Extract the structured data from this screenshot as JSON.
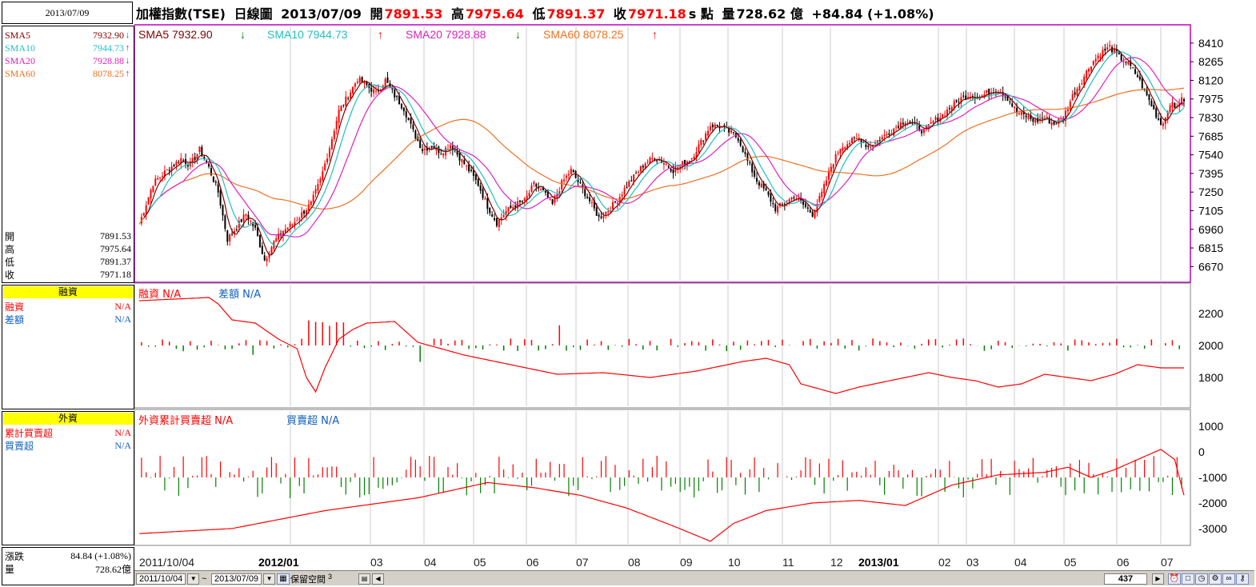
{
  "header": {
    "date_box": "2013/07/09",
    "title": "加權指數(TSE)",
    "chart_kind": "日線圖",
    "date": "2013/07/09",
    "open_label": "開",
    "open": "7891.53",
    "high_label": "高",
    "high": "7975.64",
    "low_label": "低",
    "low": "7891.37",
    "close_label": "收",
    "close": "7971.18",
    "close_suffix": "s 點",
    "volume_label": "量",
    "volume": "728.62 億",
    "change": "+84.84 (+1.08%)"
  },
  "left_panel": {
    "sma": [
      {
        "label": "SMA5",
        "value": "7932.90",
        "dir": "down",
        "color": "#800000"
      },
      {
        "label": "SMA10",
        "value": "7944.73",
        "dir": "up",
        "color": "#20c0c0"
      },
      {
        "label": "SMA20",
        "value": "7928.88",
        "dir": "down",
        "color": "#e020c0"
      },
      {
        "label": "SMA60",
        "value": "8078.25",
        "dir": "up",
        "color": "#f07020"
      }
    ],
    "ohlc": [
      {
        "label": "開",
        "value": "7891.53"
      },
      {
        "label": "高",
        "value": "7975.64"
      },
      {
        "label": "低",
        "value": "7891.37"
      },
      {
        "label": "收",
        "value": "7971.18"
      }
    ],
    "margin_title": "融資",
    "margin_rows": [
      {
        "label": "融資",
        "value": "N/A",
        "color": "#ff0000"
      },
      {
        "label": "差額",
        "value": "N/A",
        "color": "#1060c0"
      }
    ],
    "foreign_title": "外資",
    "foreign_rows": [
      {
        "label": "累計買賣超",
        "value": "N/A",
        "color": "#ff0000"
      },
      {
        "label": "買賣超",
        "value": "N/A",
        "color": "#1060c0"
      }
    ],
    "change_label": "漲跌",
    "change_value": "84.84 (+1.08%)",
    "volume_label": "量",
    "volume_value": "728.62億"
  },
  "chart_legend": {
    "price": [
      {
        "text": "SMA5 7932.90",
        "dir": "down",
        "color": "#800000"
      },
      {
        "text": "SMA10 7944.73",
        "dir": "up",
        "color": "#20c0c0"
      },
      {
        "text": "SMA20 7928.88",
        "dir": "down",
        "color": "#e020c0"
      },
      {
        "text": "SMA60 8078.25",
        "dir": "up",
        "color": "#f07020"
      }
    ],
    "margin": [
      {
        "text": "融資 N/A",
        "color": "#ff0000"
      },
      {
        "text": "差額 N/A",
        "color": "#1060c0"
      }
    ],
    "foreign": [
      {
        "text": "外資累計買賣超 N/A",
        "color": "#ff0000"
      },
      {
        "text": "買賣超 N/A",
        "color": "#1060c0"
      }
    ]
  },
  "chart_data": [
    {
      "type": "candlestick",
      "name": "price",
      "y_ticks": [
        8410,
        8265,
        8120,
        7975,
        7830,
        7685,
        7540,
        7395,
        7250,
        7105,
        6960,
        6815,
        6670
      ],
      "ylim": [
        6560,
        8540
      ],
      "x_labels": [
        "2011/10/04",
        "2012/01",
        "03",
        "04",
        "05",
        "06",
        "07",
        "08",
        "09",
        "10",
        "11",
        "12",
        "2013/01",
        "02",
        "03",
        "04",
        "05",
        "06",
        "07"
      ],
      "close_path": [
        [
          0,
          7000
        ],
        [
          6,
          7320
        ],
        [
          12,
          7420
        ],
        [
          18,
          7510
        ],
        [
          22,
          7460
        ],
        [
          26,
          7580
        ],
        [
          30,
          7440
        ],
        [
          34,
          7250
        ],
        [
          38,
          6880
        ],
        [
          42,
          6980
        ],
        [
          46,
          7080
        ],
        [
          50,
          6960
        ],
        [
          54,
          6720
        ],
        [
          58,
          6860
        ],
        [
          62,
          6950
        ],
        [
          66,
          7000
        ],
        [
          70,
          7080
        ],
        [
          74,
          7160
        ],
        [
          78,
          7340
        ],
        [
          82,
          7600
        ],
        [
          86,
          7880
        ],
        [
          90,
          8000
        ],
        [
          94,
          8130
        ],
        [
          98,
          8080
        ],
        [
          102,
          8020
        ],
        [
          106,
          8120
        ],
        [
          110,
          8000
        ],
        [
          114,
          7900
        ],
        [
          118,
          7720
        ],
        [
          122,
          7580
        ],
        [
          126,
          7610
        ],
        [
          130,
          7560
        ],
        [
          134,
          7620
        ],
        [
          138,
          7520
        ],
        [
          142,
          7420
        ],
        [
          146,
          7310
        ],
        [
          150,
          7140
        ],
        [
          154,
          7010
        ],
        [
          158,
          7100
        ],
        [
          162,
          7150
        ],
        [
          166,
          7180
        ],
        [
          170,
          7310
        ],
        [
          174,
          7250
        ],
        [
          178,
          7150
        ],
        [
          182,
          7320
        ],
        [
          186,
          7420
        ],
        [
          190,
          7300
        ],
        [
          194,
          7180
        ],
        [
          198,
          7050
        ],
        [
          202,
          7110
        ],
        [
          206,
          7190
        ],
        [
          210,
          7300
        ],
        [
          214,
          7390
        ],
        [
          218,
          7480
        ],
        [
          222,
          7520
        ],
        [
          226,
          7480
        ],
        [
          230,
          7420
        ],
        [
          234,
          7470
        ],
        [
          238,
          7520
        ],
        [
          242,
          7640
        ],
        [
          246,
          7770
        ],
        [
          250,
          7760
        ],
        [
          254,
          7720
        ],
        [
          258,
          7670
        ],
        [
          262,
          7490
        ],
        [
          266,
          7340
        ],
        [
          270,
          7250
        ],
        [
          274,
          7120
        ],
        [
          278,
          7160
        ],
        [
          282,
          7220
        ],
        [
          286,
          7150
        ],
        [
          290,
          7080
        ],
        [
          294,
          7240
        ],
        [
          298,
          7450
        ],
        [
          302,
          7600
        ],
        [
          306,
          7640
        ],
        [
          310,
          7670
        ],
        [
          314,
          7600
        ],
        [
          318,
          7650
        ],
        [
          322,
          7700
        ],
        [
          326,
          7760
        ],
        [
          330,
          7810
        ],
        [
          334,
          7770
        ],
        [
          338,
          7720
        ],
        [
          342,
          7800
        ],
        [
          346,
          7850
        ],
        [
          350,
          7920
        ],
        [
          354,
          7980
        ],
        [
          358,
          8010
        ],
        [
          362,
          7990
        ],
        [
          366,
          8030
        ],
        [
          370,
          8050
        ],
        [
          374,
          7980
        ],
        [
          378,
          7870
        ],
        [
          382,
          7840
        ],
        [
          386,
          7800
        ],
        [
          390,
          7830
        ],
        [
          394,
          7780
        ],
        [
          398,
          7830
        ],
        [
          402,
          8000
        ],
        [
          406,
          8120
        ],
        [
          410,
          8250
        ],
        [
          414,
          8330
        ],
        [
          418,
          8380
        ],
        [
          422,
          8300
        ],
        [
          426,
          8250
        ],
        [
          430,
          8150
        ],
        [
          434,
          8000
        ],
        [
          438,
          7850
        ],
        [
          440,
          7780
        ],
        [
          442,
          7830
        ],
        [
          444,
          7950
        ],
        [
          446,
          7900
        ],
        [
          448,
          7960
        ],
        [
          450,
          7971
        ]
      ],
      "sma5": "7932.90",
      "sma10": "7944.73",
      "sma20": "7928.88",
      "sma60": "8078.25"
    },
    {
      "type": "bar-line",
      "name": "margin",
      "y_ticks": [
        2200,
        2000,
        1800
      ],
      "ylim": [
        1620,
        2380
      ]
    },
    {
      "type": "bar-line",
      "name": "foreign",
      "y_ticks": [
        1000,
        0,
        -1000,
        -2000,
        -3000
      ],
      "ylim": [
        -3600,
        1600
      ]
    }
  ],
  "bottom_bar": {
    "start_date": "2011/10/04",
    "tilde": "~",
    "end_date": "2013/07/09",
    "reserve_label": "保留空間",
    "reserve_value": "3",
    "count": "437"
  },
  "colors": {
    "up": "#ff0000",
    "down": "#008000",
    "frame": "#c000c0",
    "grid": "#c0c0c0"
  }
}
